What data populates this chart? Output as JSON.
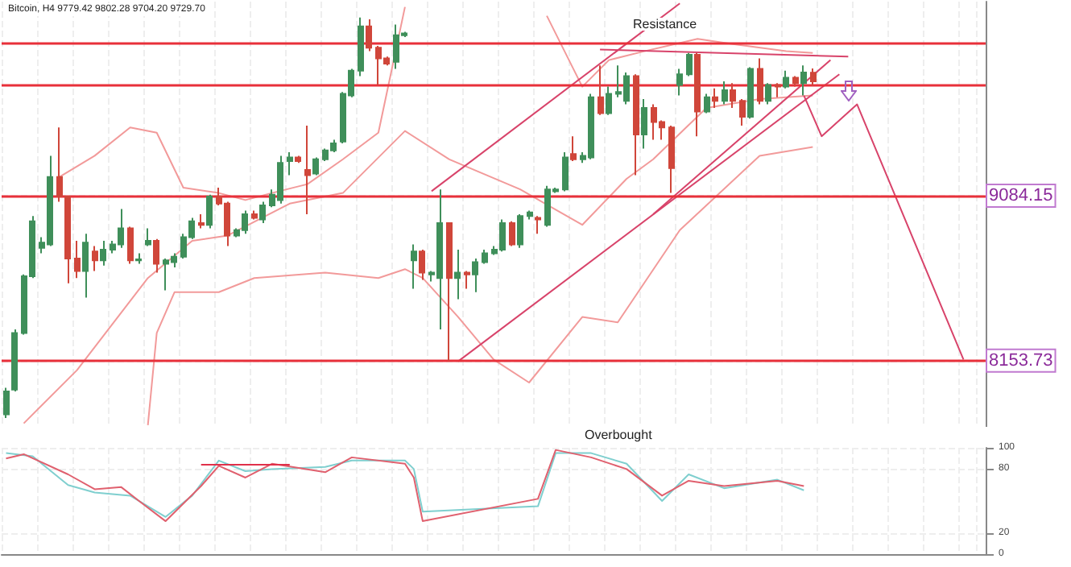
{
  "chart_data": [
    {
      "type": "candlestick",
      "title": "Bitcoin, H4 9779.42 9802.28 9704.20 9729.70",
      "tick_labels": "y",
      "grid": true,
      "yticks": [
        8153.73,
        9084.15
      ],
      "categories": [
        null,
        null,
        null,
        null,
        null,
        null,
        null,
        null,
        null,
        null,
        null,
        null,
        null,
        null,
        null,
        null,
        null,
        null,
        null,
        null,
        null,
        null,
        null,
        null,
        null,
        null,
        null,
        null,
        null,
        null,
        null,
        null,
        null,
        null,
        null,
        null,
        null,
        null,
        null,
        null,
        null,
        null,
        null,
        null,
        null,
        null,
        null,
        null,
        null,
        null,
        null,
        null,
        null,
        null,
        null,
        null,
        null,
        null,
        null,
        null,
        null,
        null,
        null,
        null,
        null,
        null,
        null,
        null,
        null,
        null,
        null,
        null,
        null,
        null,
        null,
        null,
        null,
        null,
        null,
        null,
        null,
        null,
        null,
        null,
        null,
        null,
        null,
        null,
        null,
        null,
        null,
        null,
        null,
        null,
        null,
        null,
        null,
        null,
        null,
        null,
        null,
        null,
        null,
        null,
        null,
        null,
        null,
        null,
        null,
        null,
        null
      ],
      "ylim": [
        7780,
        10180
      ],
      "ohlc": [
        [
          7850,
          8000,
          7830,
          7980
        ],
        [
          7990,
          8330,
          7980,
          8310
        ],
        [
          8310,
          8640,
          8300,
          8630
        ],
        [
          8630,
          8970,
          8620,
          8940
        ],
        [
          8790,
          8850,
          8760,
          8820
        ],
        [
          8810,
          9310,
          8800,
          9190
        ],
        [
          9190,
          9470,
          9050,
          9080
        ],
        [
          9080,
          9080,
          8590,
          8730
        ],
        [
          8730,
          8830,
          8620,
          8660
        ],
        [
          8660,
          8870,
          8510,
          8820
        ],
        [
          8770,
          8800,
          8660,
          8720
        ],
        [
          8720,
          8830,
          8690,
          8780
        ],
        [
          8780,
          8830,
          8760,
          8810
        ],
        [
          8810,
          9010,
          8790,
          8900
        ],
        [
          8900,
          8910,
          8700,
          8720
        ],
        [
          8720,
          8760,
          8700,
          8725
        ],
        [
          8810,
          8900,
          8800,
          8830
        ],
        [
          8830,
          8840,
          8650,
          8700
        ],
        [
          8700,
          8730,
          8550,
          8720
        ],
        [
          8710,
          8760,
          8680,
          8740
        ],
        [
          8740,
          8870,
          8730,
          8850
        ],
        [
          8850,
          8960,
          8840,
          8940
        ],
        [
          8930,
          8980,
          8900,
          8920
        ],
        [
          8920,
          9090,
          8900,
          9080
        ],
        [
          9080,
          9130,
          9030,
          9040
        ],
        [
          9040,
          9050,
          8800,
          8860
        ],
        [
          8860,
          8900,
          8850,
          8890
        ],
        [
          8890,
          9000,
          8870,
          8980
        ],
        [
          8980,
          9000,
          8950,
          8960
        ],
        [
          8950,
          9050,
          8930,
          9030
        ],
        [
          9030,
          9120,
          9020,
          9090
        ],
        [
          9060,
          9310,
          9040,
          9270
        ],
        [
          9280,
          9330,
          9200,
          9300
        ],
        [
          9300,
          9310,
          9270,
          9280
        ],
        [
          9230,
          9480,
          8980,
          9200
        ],
        [
          9210,
          9300,
          9200,
          9290
        ],
        [
          9290,
          9350,
          9280,
          9340
        ],
        [
          9340,
          9400,
          9330,
          9380
        ],
        [
          9390,
          9670,
          9380,
          9660
        ],
        [
          9650,
          9800,
          9640,
          9790
        ],
        [
          9790,
          10090,
          9760,
          10040
        ],
        [
          10040,
          10080,
          9900,
          9920
        ],
        [
          9920,
          9930,
          9710,
          9860
        ],
        [
          9860,
          9870,
          9820,
          9830
        ],
        [
          9840,
          10050,
          9800,
          9990
        ],
        [
          9990,
          10010,
          9980,
          10000
        ],
        [
          8720,
          8810,
          8560,
          8770
        ],
        [
          8770,
          8780,
          8610,
          8650
        ],
        [
          8640,
          8660,
          8600,
          8650
        ],
        [
          8620,
          9120,
          8330,
          8930
        ],
        [
          8930,
          8930,
          8150,
          8620
        ],
        [
          8620,
          8780,
          8500,
          8650
        ],
        [
          8650,
          8660,
          8560,
          8640
        ],
        [
          8640,
          8730,
          8540,
          8710
        ],
        [
          8710,
          8780,
          8700,
          8760
        ],
        [
          8760,
          8800,
          8750,
          8780
        ],
        [
          8780,
          8950,
          8770,
          8930
        ],
        [
          8930,
          8940,
          8800,
          8810
        ],
        [
          8810,
          8980,
          8790,
          8970
        ],
        [
          8970,
          9000,
          8950,
          8990
        ],
        [
          8960,
          8970,
          8870,
          8950
        ],
        [
          8920,
          9140,
          8910,
          9120
        ],
        [
          9110,
          9130,
          9100,
          9120
        ],
        [
          9120,
          9330,
          9110,
          9300
        ],
        [
          9320,
          9420,
          9280,
          9290
        ],
        [
          9290,
          9330,
          9270,
          9310
        ],
        [
          9300,
          9660,
          9290,
          9640
        ],
        [
          9640,
          9820,
          9540,
          9550
        ],
        [
          9550,
          9700,
          9540,
          9660
        ],
        [
          9660,
          9820,
          9640,
          9670
        ],
        [
          9620,
          9780,
          9600,
          9760
        ],
        [
          9760,
          9770,
          9200,
          9430
        ],
        [
          9430,
          9630,
          9350,
          9580
        ],
        [
          9580,
          9600,
          9400,
          9500
        ],
        [
          9500,
          9510,
          9400,
          9470
        ],
        [
          9470,
          9480,
          9100,
          9240
        ],
        [
          9710,
          9800,
          9650,
          9770
        ],
        [
          9770,
          9890,
          9760,
          9880
        ],
        [
          9880,
          9890,
          9420,
          9560
        ],
        [
          9560,
          9660,
          9550,
          9640
        ],
        [
          9640,
          9690,
          9580,
          9620
        ],
        [
          9620,
          9730,
          9600,
          9680
        ],
        [
          9680,
          9720,
          9580,
          9620
        ],
        [
          9620,
          9630,
          9480,
          9530
        ],
        [
          9530,
          9810,
          9520,
          9800
        ],
        [
          9800,
          9860,
          9600,
          9620
        ],
        [
          9620,
          9720,
          9600,
          9710
        ],
        [
          9710,
          9720,
          9640,
          9700
        ],
        [
          9700,
          9790,
          9690,
          9750
        ],
        [
          9750,
          9760,
          9700,
          9720
        ],
        [
          9720,
          9820,
          9650,
          9780
        ],
        [
          9779.42,
          9802.28,
          9704.2,
          9729.7
        ],
        null,
        null,
        null,
        null,
        null,
        null,
        null,
        null,
        null,
        null,
        null,
        null,
        null,
        null,
        null,
        null,
        null,
        null,
        null
      ],
      "colors": [
        "#3f8f5a",
        "#3f8f5a",
        "#3f8f5a",
        "#3f8f5a",
        "#3f8f5a",
        "#3f8f5a",
        "#d0463a",
        "#d0463a",
        "#d0463a",
        "#3f8f5a",
        "#d0463a",
        "#3f8f5a",
        "#3f8f5a",
        "#3f8f5a",
        "#d0463a",
        "#3f8f5a",
        "#3f8f5a",
        "#d0463a",
        "#3f8f5a",
        "#3f8f5a",
        "#3f8f5a",
        "#3f8f5a",
        "#d0463a",
        "#3f8f5a",
        "#d0463a",
        "#d0463a",
        "#3f8f5a",
        "#3f8f5a",
        "#d0463a",
        "#3f8f5a",
        "#3f8f5a",
        "#3f8f5a",
        "#3f8f5a",
        "#d0463a",
        "#d0463a",
        "#3f8f5a",
        "#3f8f5a",
        "#3f8f5a",
        "#3f8f5a",
        "#3f8f5a",
        "#3f8f5a",
        "#d0463a",
        "#d0463a",
        "#d0463a",
        "#3f8f5a",
        "#3f8f5a",
        "#3f8f5a",
        "#d0463a",
        "#3f8f5a",
        "#3f8f5a",
        "#d0463a",
        "#3f8f5a",
        "#d0463a",
        "#3f8f5a",
        "#3f8f5a",
        "#3f8f5a",
        "#3f8f5a",
        "#d0463a",
        "#3f8f5a",
        "#3f8f5a",
        "#d0463a",
        "#3f8f5a",
        "#3f8f5a",
        "#3f8f5a",
        "#d0463a",
        "#3f8f5a",
        "#3f8f5a",
        "#d0463a",
        "#3f8f5a",
        "#3f8f5a",
        "#3f8f5a",
        "#d0463a",
        "#3f8f5a",
        "#d0463a",
        "#d0463a",
        "#d0463a",
        "#3f8f5a",
        "#3f8f5a",
        "#d0463a",
        "#3f8f5a",
        "#d0463a",
        "#3f8f5a",
        "#d0463a",
        "#d0463a",
        "#3f8f5a",
        "#d0463a",
        "#3f8f5a",
        "#d0463a",
        "#3f8f5a",
        "#d0463a",
        "#3f8f5a",
        "#d0463a",
        null,
        null,
        null,
        null,
        null,
        null,
        null,
        null,
        null,
        null,
        null,
        null,
        null,
        null,
        null,
        null,
        null,
        null,
        null
      ],
      "series": [
        {
          "type": "line",
          "color": "#f29a9a",
          "values": [
            null,
            null,
            null,
            null,
            null,
            null,
            9190,
            null,
            null,
            null,
            9310,
            null,
            null,
            null,
            9470,
            null,
            null,
            9440,
            null,
            null,
            9130,
            null,
            null,
            null,
            9100,
            null,
            null,
            9060,
            null,
            null,
            9100,
            null,
            null,
            null,
            9150,
            null,
            null,
            null,
            9290,
            null,
            null,
            null,
            9440,
            null,
            null,
            10150,
            null,
            null,
            null,
            null,
            null,
            null,
            null,
            null,
            null,
            null,
            null,
            null,
            null,
            null,
            null,
            null,
            null,
            null,
            null,
            null,
            null,
            null,
            null,
            null,
            null,
            null,
            null,
            null,
            null,
            null,
            null,
            null,
            null,
            null,
            null,
            null,
            null,
            null,
            null,
            null,
            null,
            null,
            null,
            null,
            null,
            null,
            null,
            null,
            null,
            null,
            null,
            null,
            null,
            null,
            null,
            null,
            null,
            null,
            null,
            null,
            null,
            null,
            null,
            null,
            null
          ]
        },
        {
          "type": "line",
          "color": "#f29a9a",
          "values": [
            null,
            null,
            null,
            null,
            null,
            null,
            null,
            null,
            null,
            null,
            null,
            null,
            null,
            null,
            null,
            null,
            null,
            null,
            null,
            null,
            null,
            null,
            null,
            null,
            null,
            null,
            null,
            null,
            null,
            null,
            null,
            null,
            null,
            null,
            null,
            null,
            null,
            null,
            null,
            null,
            null,
            null,
            null,
            null,
            null,
            null,
            null,
            null,
            null,
            null,
            null,
            null,
            null,
            null,
            null,
            null,
            null,
            null,
            null,
            null,
            null,
            10100,
            null,
            null,
            null,
            9700,
            null,
            null,
            9850,
            null,
            null,
            null,
            9900,
            null,
            null,
            null,
            null,
            null,
            9970,
            null,
            null,
            null,
            9940,
            null,
            null,
            null,
            null,
            null,
            9900,
            null,
            null,
            9890,
            null,
            null,
            null,
            null,
            null,
            null,
            null,
            null,
            null,
            null,
            null,
            null,
            null,
            null,
            null,
            null,
            null,
            null,
            null
          ]
        },
        {
          "type": "line",
          "color": "#f29a9a",
          "values": [
            null,
            null,
            7800,
            null,
            null,
            null,
            null,
            null,
            8100,
            null,
            null,
            null,
            null,
            null,
            null,
            null,
            8620,
            null,
            null,
            null,
            null,
            8830,
            null,
            null,
            null,
            8860,
            null,
            null,
            null,
            null,
            null,
            null,
            9040,
            null,
            null,
            null,
            null,
            null,
            9100,
            null,
            null,
            null,
            null,
            null,
            null,
            9450,
            null,
            null,
            null,
            null,
            9290,
            null,
            null,
            null,
            null,
            null,
            null,
            null,
            9120,
            null,
            null,
            null,
            null,
            null,
            null,
            8920,
            null,
            null,
            null,
            null,
            9180,
            null,
            null,
            9290,
            null,
            null,
            null,
            null,
            null,
            9580,
            null,
            null,
            null,
            null,
            null,
            9630,
            null,
            null,
            null,
            null,
            null,
            9650,
            null,
            null,
            null,
            null,
            null,
            null,
            null,
            null,
            null,
            null,
            null,
            null,
            null,
            null,
            null,
            null,
            null,
            null,
            null
          ]
        },
        {
          "type": "line",
          "color": "#f29a9a",
          "values": [
            null,
            null,
            null,
            null,
            null,
            null,
            null,
            null,
            null,
            null,
            null,
            null,
            null,
            null,
            null,
            null,
            7790,
            8310,
            null,
            8540,
            null,
            null,
            null,
            null,
            8540,
            null,
            null,
            null,
            8620,
            null,
            null,
            null,
            null,
            null,
            null,
            null,
            8650,
            null,
            null,
            null,
            null,
            null,
            8620,
            null,
            null,
            8670,
            null,
            8620,
            null,
            null,
            null,
            8400,
            null,
            null,
            null,
            8160,
            null,
            null,
            null,
            8030,
            null,
            null,
            null,
            null,
            null,
            8400,
            null,
            null,
            null,
            8370,
            null,
            null,
            null,
            null,
            null,
            null,
            8890,
            null,
            null,
            null,
            null,
            null,
            null,
            null,
            null,
            9310,
            null,
            null,
            null,
            null,
            null,
            9360,
            null,
            null,
            null,
            null,
            null,
            null,
            null,
            null,
            null,
            null,
            null,
            null,
            null,
            null,
            null,
            null,
            null,
            null,
            null
          ]
        },
        {
          "type": "line",
          "color": "#d8436a",
          "values": [
            null,
            null,
            null,
            null,
            null,
            null,
            null,
            null,
            null,
            null,
            null,
            null,
            null,
            null,
            null,
            null,
            null,
            null,
            null,
            null,
            null,
            null,
            null,
            null,
            null,
            null,
            null,
            null,
            null,
            null,
            null,
            null,
            null,
            null,
            null,
            null,
            null,
            null,
            null,
            null,
            null,
            null,
            null,
            null,
            null,
            null,
            null,
            null,
            null,
            null,
            null,
            8150,
            null,
            null,
            null,
            null,
            null,
            null,
            null,
            null,
            null,
            null,
            null,
            null,
            null,
            null,
            null,
            null,
            null,
            null,
            null,
            null,
            null,
            null,
            null,
            null,
            null,
            null,
            null,
            null,
            null,
            null,
            null,
            null,
            null,
            null,
            null,
            null,
            null,
            null,
            null,
            null,
            null,
            null,
            9770,
            null,
            null,
            null,
            null,
            null,
            null,
            null,
            null,
            null,
            null,
            null,
            null,
            null,
            null,
            null,
            null
          ]
        },
        {
          "type": "line",
          "color": "#d8436a",
          "values": [
            null,
            null,
            null,
            null,
            null,
            null,
            null,
            null,
            null,
            null,
            null,
            null,
            null,
            null,
            null,
            null,
            null,
            null,
            null,
            null,
            null,
            null,
            null,
            null,
            null,
            null,
            null,
            null,
            null,
            null,
            null,
            null,
            null,
            null,
            null,
            null,
            null,
            null,
            null,
            null,
            null,
            null,
            null,
            null,
            null,
            null,
            null,
            null,
            null,
            null,
            null,
            null,
            null,
            null,
            null,
            null,
            null,
            null,
            null,
            null,
            null,
            null,
            null,
            null,
            null,
            null,
            null,
            null,
            null,
            null,
            null,
            null,
            null,
            8980,
            null,
            null,
            null,
            null,
            null,
            null,
            null,
            null,
            null,
            null,
            null,
            null,
            null,
            null,
            null,
            null,
            null,
            null,
            null,
            9850,
            null,
            null,
            null,
            null,
            null,
            null,
            null,
            null,
            null,
            null,
            null,
            null,
            null,
            null,
            null,
            null,
            null
          ]
        },
        {
          "type": "line",
          "color": "#d8436a",
          "values": [
            null,
            null,
            null,
            null,
            null,
            null,
            null,
            null,
            null,
            null,
            null,
            null,
            null,
            null,
            null,
            null,
            null,
            null,
            null,
            null,
            null,
            null,
            null,
            null,
            null,
            null,
            null,
            null,
            null,
            null,
            null,
            null,
            null,
            null,
            null,
            null,
            null,
            null,
            null,
            null,
            null,
            null,
            null,
            null,
            null,
            null,
            null,
            null,
            9110,
            null,
            null,
            null,
            null,
            null,
            null,
            null,
            null,
            null,
            null,
            null,
            null,
            null,
            null,
            null,
            null,
            null,
            null,
            null,
            null,
            null,
            null,
            null,
            null,
            null,
            null,
            null,
            10170,
            null,
            null,
            null,
            null,
            null,
            null,
            null,
            null,
            null,
            null,
            null,
            null,
            null,
            null,
            null,
            null,
            null,
            null,
            null,
            null,
            null,
            null,
            null,
            null,
            null,
            null,
            null,
            null,
            null,
            null,
            null,
            null,
            null,
            null
          ]
        },
        {
          "type": "line",
          "color": "#d8436a",
          "values": [
            null,
            null,
            null,
            null,
            null,
            null,
            null,
            null,
            null,
            null,
            null,
            null,
            null,
            null,
            null,
            null,
            null,
            null,
            null,
            null,
            null,
            null,
            null,
            null,
            null,
            null,
            null,
            null,
            null,
            null,
            null,
            null,
            null,
            null,
            null,
            null,
            null,
            null,
            null,
            null,
            null,
            null,
            null,
            null,
            null,
            null,
            null,
            null,
            null,
            null,
            null,
            null,
            null,
            null,
            null,
            null,
            null,
            null,
            null,
            null,
            null,
            null,
            null,
            null,
            null,
            null,
            null,
            9910,
            null,
            null,
            null,
            null,
            null,
            null,
            null,
            null,
            null,
            null,
            null,
            null,
            null,
            null,
            null,
            null,
            null,
            null,
            null,
            null,
            null,
            null,
            null,
            null,
            null,
            null,
            null,
            9870,
            null,
            null,
            null,
            null,
            null,
            null,
            null,
            null,
            null,
            null,
            null,
            null,
            null,
            null,
            null
          ]
        },
        {
          "type": "line",
          "color": "#d8436a",
          "values": [
            null,
            null,
            null,
            null,
            null,
            null,
            null,
            null,
            null,
            null,
            null,
            null,
            null,
            null,
            null,
            null,
            null,
            null,
            null,
            null,
            null,
            null,
            null,
            null,
            null,
            null,
            null,
            null,
            null,
            null,
            null,
            null,
            null,
            null,
            null,
            null,
            null,
            null,
            null,
            null,
            null,
            null,
            null,
            null,
            null,
            null,
            null,
            null,
            null,
            null,
            null,
            null,
            null,
            null,
            null,
            null,
            null,
            null,
            null,
            null,
            null,
            null,
            null,
            null,
            null,
            null,
            null,
            null,
            null,
            null,
            null,
            null,
            null,
            null,
            null,
            null,
            null,
            null,
            null,
            null,
            null,
            null,
            null,
            null,
            null,
            null,
            null,
            null,
            null,
            null,
            9650,
            null,
            9420,
            null,
            null,
            null,
            9600,
            null,
            null,
            null,
            null,
            null,
            null,
            null,
            null,
            null,
            null,
            null,
            8160,
            null,
            null
          ]
        }
      ],
      "ref_lines": [
        {
          "axis": "y",
          "value": 9950,
          "color": "#e8303a"
        },
        {
          "axis": "y",
          "value": 9713,
          "color": "#e8303a"
        },
        {
          "axis": "y",
          "value": 9084.15,
          "color": "#e8303a"
        },
        {
          "axis": "y",
          "value": 8153.73,
          "color": "#e8303a"
        }
      ],
      "annotations": [
        "Resistance"
      ]
    },
    {
      "type": "line",
      "tick_labels": "y",
      "grid": true,
      "categories": [
        null,
        null,
        null,
        null,
        null,
        null,
        null,
        null,
        null,
        null,
        null,
        null,
        null,
        null,
        null,
        null,
        null,
        null,
        null,
        null,
        null,
        null,
        null,
        null,
        null,
        null,
        null,
        null,
        null,
        null,
        null,
        null,
        null,
        null,
        null,
        null,
        null,
        null,
        null,
        null,
        null,
        null,
        null,
        null,
        null,
        null,
        null,
        null,
        null,
        null,
        null,
        null,
        null,
        null,
        null,
        null,
        null,
        null,
        null,
        null,
        null,
        null,
        null,
        null,
        null,
        null,
        null,
        null,
        null,
        null,
        null,
        null,
        null,
        null,
        null,
        null,
        null,
        null,
        null,
        null,
        null,
        null,
        null,
        null,
        null,
        null,
        null,
        null,
        null,
        null,
        null,
        null,
        null,
        null,
        null,
        null,
        null,
        null,
        null,
        null,
        null,
        null,
        null,
        null,
        null,
        null,
        null,
        null,
        null,
        null,
        null
      ],
      "ylim": [
        0,
        100
      ],
      "yticks": [
        0,
        20,
        80,
        100
      ],
      "series": [
        {
          "color": "#7fcfcf",
          "values": [
            95,
            null,
            null,
            92,
            null,
            null,
            null,
            65,
            null,
            null,
            58,
            null,
            null,
            null,
            55,
            null,
            null,
            null,
            35,
            null,
            null,
            55,
            null,
            null,
            88,
            null,
            null,
            78,
            null,
            null,
            80,
            null,
            null,
            null,
            null,
            null,
            82,
            null,
            null,
            88,
            null,
            null,
            null,
            null,
            null,
            88,
            80,
            40,
            null,
            null,
            null,
            null,
            null,
            null,
            null,
            null,
            null,
            null,
            null,
            null,
            45,
            null,
            95,
            null,
            null,
            null,
            95,
            null,
            null,
            null,
            85,
            null,
            null,
            null,
            50,
            null,
            null,
            75,
            null,
            null,
            null,
            62,
            null,
            null,
            null,
            null,
            null,
            70,
            null,
            null,
            60,
            null,
            null,
            null,
            null,
            null,
            null,
            null,
            null,
            null,
            null,
            null,
            null,
            null,
            null,
            null,
            null,
            null,
            null,
            null,
            null
          ]
        },
        {
          "color": "#e0606e",
          "values": [
            90,
            null,
            94,
            null,
            null,
            null,
            null,
            75,
            null,
            null,
            61,
            null,
            null,
            63,
            null,
            50,
            null,
            null,
            31,
            null,
            null,
            null,
            64,
            null,
            83,
            null,
            null,
            72,
            null,
            null,
            85,
            null,
            null,
            null,
            null,
            null,
            77,
            null,
            null,
            91,
            null,
            null,
            null,
            null,
            null,
            85,
            72,
            31,
            null,
            null,
            null,
            null,
            null,
            null,
            null,
            null,
            null,
            null,
            null,
            null,
            52,
            null,
            98,
            null,
            null,
            null,
            91,
            null,
            null,
            null,
            80,
            null,
            null,
            null,
            55,
            null,
            null,
            69,
            null,
            null,
            null,
            64,
            null,
            null,
            null,
            null,
            null,
            69,
            null,
            null,
            64,
            null,
            null,
            null,
            null,
            null,
            null,
            null,
            null,
            null,
            null,
            null,
            null,
            null,
            null,
            null,
            null,
            null,
            null,
            null,
            null
          ]
        },
        {
          "color": "#e0304a",
          "values": [
            null,
            null,
            null,
            null,
            null,
            null,
            null,
            null,
            null,
            null,
            null,
            null,
            null,
            null,
            null,
            null,
            null,
            null,
            null,
            null,
            null,
            null,
            84,
            null,
            null,
            null,
            null,
            null,
            null,
            null,
            null,
            null,
            84,
            null,
            null,
            null,
            null,
            null,
            null,
            null,
            null,
            null,
            null,
            null,
            null,
            null,
            null,
            null,
            null,
            null,
            null,
            null,
            null,
            null,
            null,
            null,
            null,
            null,
            null,
            null,
            null,
            null,
            null,
            null,
            null,
            null,
            null,
            null,
            null,
            null,
            null,
            null,
            null,
            null,
            null,
            null,
            null,
            null,
            null,
            null,
            null,
            null,
            null,
            null,
            null,
            null,
            null,
            null,
            null,
            null,
            null,
            null,
            null,
            null,
            null,
            null,
            null,
            null,
            null,
            null,
            null,
            null,
            null,
            null,
            null,
            null,
            null,
            null,
            null,
            null,
            null
          ]
        }
      ],
      "annotations": [
        "Overbought"
      ]
    }
  ]
}
